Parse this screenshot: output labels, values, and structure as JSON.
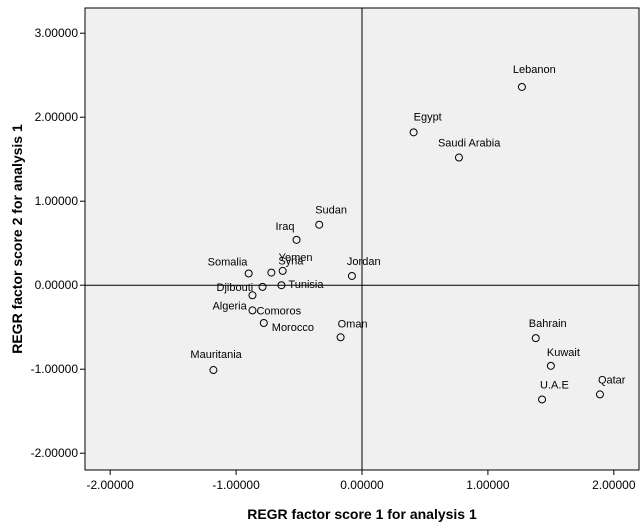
{
  "chart_data": {
    "type": "scatter",
    "xlabel": "REGR factor score   1 for analysis 1",
    "ylabel": "REGR factor score   2 for analysis 1",
    "xlim": [
      -2.2,
      2.2
    ],
    "ylim": [
      -2.2,
      3.3
    ],
    "xticks": [
      -2,
      -1,
      0,
      1,
      2
    ],
    "yticks": [
      -2,
      -1,
      0,
      1,
      2,
      3
    ],
    "xtick_labels": [
      "-2.00000",
      "-1.00000",
      "0.00000",
      "1.00000",
      "2.00000"
    ],
    "ytick_labels": [
      "-2.00000",
      "-1.00000",
      "0.00000",
      "1.00000",
      "2.00000",
      "3.00000"
    ],
    "reference_lines": {
      "x": 0,
      "y": 0
    },
    "grid": false,
    "plot_background": "#f0f0f0",
    "marker_style": "open-circle",
    "points": [
      {
        "label": "Lebanon",
        "x": 1.27,
        "y": 2.36
      },
      {
        "label": "Egypt",
        "x": 0.41,
        "y": 1.82
      },
      {
        "label": "Saudi Arabia",
        "x": 0.77,
        "y": 1.52
      },
      {
        "label": "Sudan",
        "x": -0.34,
        "y": 0.72
      },
      {
        "label": "Iraq",
        "x": -0.52,
        "y": 0.54
      },
      {
        "label": "Jordan",
        "x": -0.08,
        "y": 0.11
      },
      {
        "label": "Somalia",
        "x": -0.9,
        "y": 0.14
      },
      {
        "label": "Syria",
        "x": -0.72,
        "y": 0.15
      },
      {
        "label": "Yemen",
        "x": -0.63,
        "y": 0.17
      },
      {
        "label": "Djibouti",
        "x": -0.79,
        "y": -0.02
      },
      {
        "label": "Tunisia",
        "x": -0.64,
        "y": 0.0
      },
      {
        "label": "Algeria",
        "x": -0.87,
        "y": -0.12
      },
      {
        "label": "Comoros",
        "x": -0.87,
        "y": -0.3
      },
      {
        "label": "Morocco",
        "x": -0.78,
        "y": -0.45
      },
      {
        "label": "Oman",
        "x": -0.17,
        "y": -0.62
      },
      {
        "label": "Mauritania",
        "x": -1.18,
        "y": -1.01
      },
      {
        "label": "Bahrain",
        "x": 1.38,
        "y": -0.63
      },
      {
        "label": "Kuwait",
        "x": 1.5,
        "y": -0.96
      },
      {
        "label": "U.A.E",
        "x": 1.43,
        "y": -1.36
      },
      {
        "label": "Qatar",
        "x": 1.89,
        "y": -1.3
      }
    ]
  }
}
